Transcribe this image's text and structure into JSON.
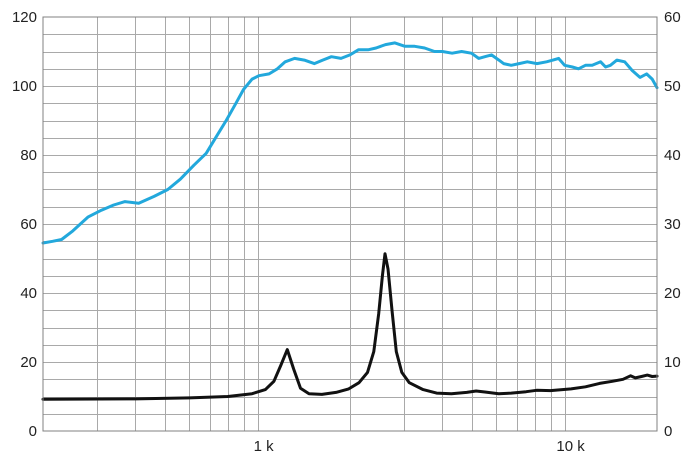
{
  "chart_data": {
    "type": "line",
    "title": "",
    "xlabel": "",
    "ylabel": "",
    "x_scale": "log",
    "xlim": [
      200,
      20000
    ],
    "x_ticks": [
      {
        "value": 1000,
        "label": "1 k"
      },
      {
        "value": 10000,
        "label": "10 k"
      }
    ],
    "ylim_left": [
      0,
      120
    ],
    "y_ticks_left": [
      "0",
      "20",
      "40",
      "60",
      "80",
      "100",
      "120"
    ],
    "ylim_right": [
      0,
      60
    ],
    "y_ticks_right": [
      "0",
      "10",
      "20",
      "30",
      "40",
      "50",
      "60"
    ],
    "grid": true,
    "series": [
      {
        "axis": "left",
        "color": "#22a8dc",
        "points": [
          [
            200,
            54.5
          ],
          [
            215,
            55
          ],
          [
            230,
            55.5
          ],
          [
            250,
            58
          ],
          [
            280,
            62
          ],
          [
            310,
            64
          ],
          [
            340,
            65.5
          ],
          [
            370,
            66.5
          ],
          [
            410,
            66
          ],
          [
            460,
            68
          ],
          [
            510,
            70
          ],
          [
            560,
            73
          ],
          [
            620,
            77
          ],
          [
            680,
            80.5
          ],
          [
            730,
            85
          ],
          [
            790,
            90
          ],
          [
            850,
            95
          ],
          [
            900,
            99
          ],
          [
            960,
            102
          ],
          [
            1010,
            103
          ],
          [
            1090,
            103.5
          ],
          [
            1160,
            105
          ],
          [
            1230,
            107
          ],
          [
            1320,
            108
          ],
          [
            1420,
            107.5
          ],
          [
            1530,
            106.5
          ],
          [
            1630,
            107.5
          ],
          [
            1740,
            108.5
          ],
          [
            1870,
            108
          ],
          [
            2000,
            109
          ],
          [
            2130,
            110.5
          ],
          [
            2290,
            110.5
          ],
          [
            2430,
            111
          ],
          [
            2610,
            112
          ],
          [
            2800,
            112.5
          ],
          [
            3020,
            111.5
          ],
          [
            3250,
            111.5
          ],
          [
            3500,
            111
          ],
          [
            3770,
            110
          ],
          [
            4000,
            110
          ],
          [
            4300,
            109.5
          ],
          [
            4620,
            110
          ],
          [
            4970,
            109.5
          ],
          [
            5250,
            108
          ],
          [
            5500,
            108.5
          ],
          [
            5780,
            109
          ],
          [
            6110,
            107.5
          ],
          [
            6330,
            106.5
          ],
          [
            6700,
            106
          ],
          [
            7110,
            106.5
          ],
          [
            7560,
            107
          ],
          [
            8130,
            106.5
          ],
          [
            8740,
            107
          ],
          [
            9170,
            107.5
          ],
          [
            9560,
            108
          ],
          [
            10000,
            106
          ],
          [
            10600,
            105.5
          ],
          [
            11100,
            105
          ],
          [
            11700,
            106
          ],
          [
            12300,
            106
          ],
          [
            13100,
            107
          ],
          [
            13600,
            105.5
          ],
          [
            14100,
            106
          ],
          [
            14800,
            107.5
          ],
          [
            15700,
            107
          ],
          [
            16600,
            104.5
          ],
          [
            17600,
            102.5
          ],
          [
            18500,
            103.5
          ],
          [
            19300,
            102
          ],
          [
            20000,
            99.5
          ]
        ]
      },
      {
        "axis": "right",
        "color": "#111111",
        "points": [
          [
            200,
            4.6
          ],
          [
            400,
            4.65
          ],
          [
            600,
            4.8
          ],
          [
            800,
            5.0
          ],
          [
            960,
            5.4
          ],
          [
            1060,
            6.0
          ],
          [
            1130,
            7.2
          ],
          [
            1190,
            9.5
          ],
          [
            1250,
            11.8
          ],
          [
            1310,
            9.0
          ],
          [
            1380,
            6.2
          ],
          [
            1470,
            5.4
          ],
          [
            1620,
            5.3
          ],
          [
            1800,
            5.6
          ],
          [
            1980,
            6.1
          ],
          [
            2140,
            7.0
          ],
          [
            2280,
            8.5
          ],
          [
            2390,
            11.5
          ],
          [
            2480,
            17.0
          ],
          [
            2550,
            22.5
          ],
          [
            2600,
            25.7
          ],
          [
            2660,
            23.5
          ],
          [
            2740,
            17.5
          ],
          [
            2830,
            11.5
          ],
          [
            2950,
            8.5
          ],
          [
            3120,
            7.0
          ],
          [
            3460,
            6.0
          ],
          [
            3830,
            5.5
          ],
          [
            4280,
            5.4
          ],
          [
            4800,
            5.6
          ],
          [
            5150,
            5.8
          ],
          [
            5500,
            5.65
          ],
          [
            6100,
            5.4
          ],
          [
            6700,
            5.5
          ],
          [
            7500,
            5.7
          ],
          [
            8100,
            5.9
          ],
          [
            9000,
            5.85
          ],
          [
            10500,
            6.1
          ],
          [
            11700,
            6.4
          ],
          [
            13000,
            6.9
          ],
          [
            14300,
            7.2
          ],
          [
            15500,
            7.5
          ],
          [
            16400,
            8.0
          ],
          [
            17000,
            7.7
          ],
          [
            17800,
            7.9
          ],
          [
            18600,
            8.1
          ],
          [
            19300,
            7.9
          ],
          [
            20000,
            7.95
          ]
        ]
      }
    ]
  }
}
